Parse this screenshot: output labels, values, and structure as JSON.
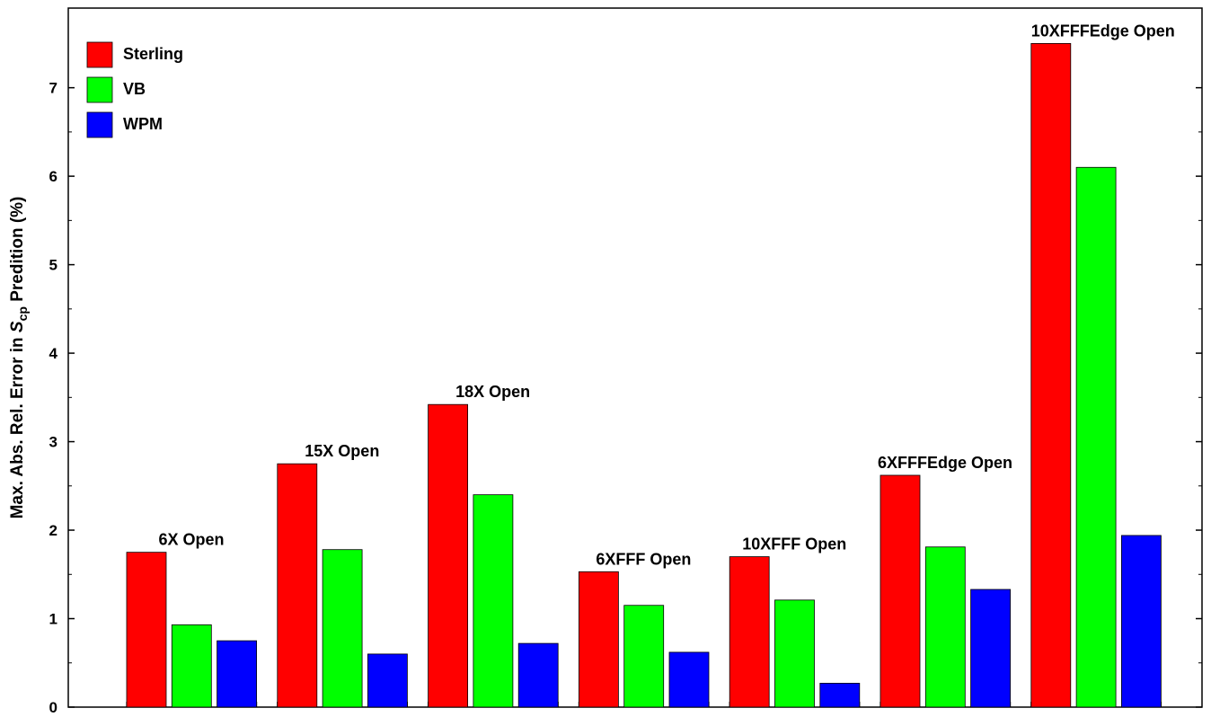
{
  "chart_data": {
    "type": "bar",
    "categories": [
      "6X Open",
      "15X Open",
      "18X Open",
      "6XFFF Open",
      "10XFFF Open",
      "6XFFFEdge Open",
      "10XFFFEdge Open"
    ],
    "series": [
      {
        "name": "Sterling",
        "color": "#ff0000",
        "values": [
          1.75,
          2.75,
          3.42,
          1.53,
          1.7,
          2.62,
          7.5
        ]
      },
      {
        "name": "VB",
        "color": "#00ff00",
        "values": [
          0.93,
          1.78,
          2.4,
          1.15,
          1.21,
          1.81,
          6.1
        ]
      },
      {
        "name": "WPM",
        "color": "#0000ff",
        "values": [
          0.75,
          0.6,
          0.72,
          0.62,
          0.27,
          1.33,
          1.94
        ]
      }
    ],
    "ylabel": {
      "main": "Max. Abs. Rel. Error in ",
      "italic": "S",
      "sub": "cp",
      "tail": " Predition (%)"
    },
    "ylim": [
      0,
      7.9
    ],
    "yticks": [
      "0",
      "1",
      "2",
      "3",
      "4",
      "5",
      "6",
      "7"
    ],
    "grid": false,
    "legend_position": "top-left"
  }
}
